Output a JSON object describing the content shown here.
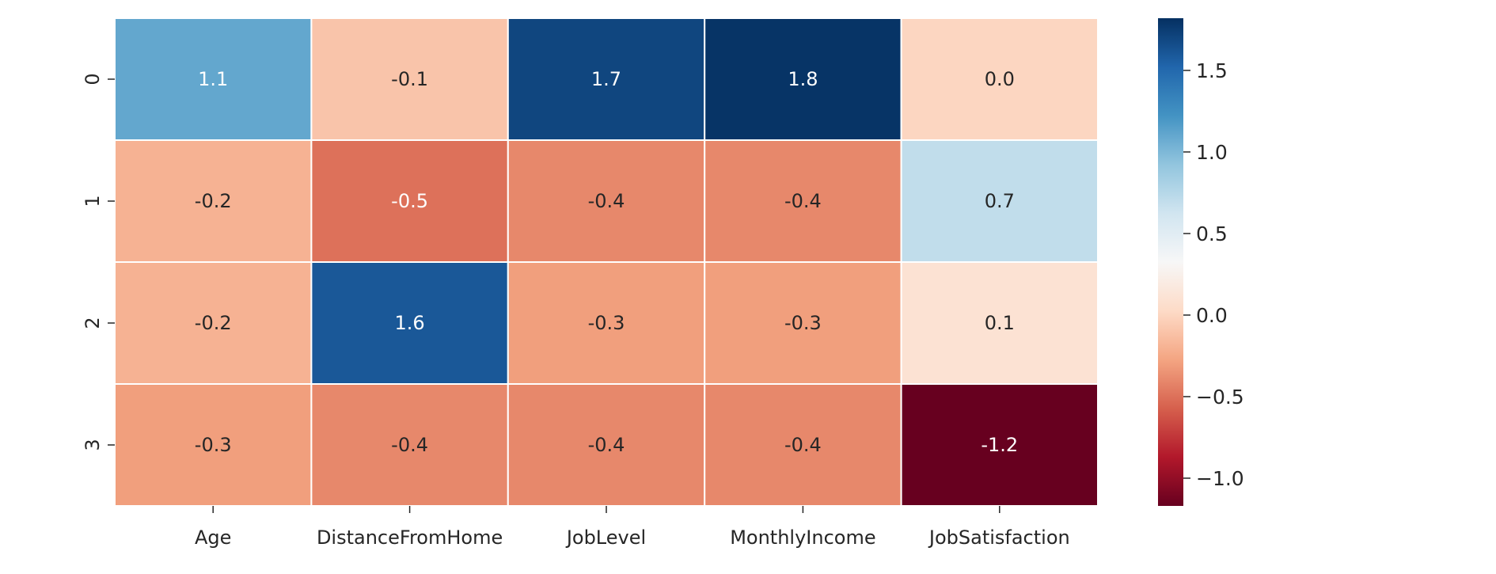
{
  "chart_data": {
    "type": "heatmap",
    "title": "",
    "xlabel": "",
    "ylabel": "",
    "columns": [
      "Age",
      "DistanceFromHome",
      "JobLevel",
      "MonthlyIncome",
      "JobSatisfaction"
    ],
    "rows": [
      "0",
      "1",
      "2",
      "3"
    ],
    "values": [
      [
        1.1,
        -0.1,
        1.7,
        1.8,
        0.0
      ],
      [
        -0.2,
        -0.5,
        -0.4,
        -0.4,
        0.7
      ],
      [
        -0.2,
        1.6,
        -0.3,
        -0.3,
        0.1
      ],
      [
        -0.3,
        -0.4,
        -0.4,
        -0.4,
        -1.2
      ]
    ],
    "cell_labels": [
      [
        "1.1",
        "-0.1",
        "1.7",
        "1.8",
        "0.0"
      ],
      [
        "-0.2",
        "-0.5",
        "-0.4",
        "-0.4",
        "0.7"
      ],
      [
        "-0.2",
        "1.6",
        "-0.3",
        "-0.3",
        "0.1"
      ],
      [
        "-0.3",
        "-0.4",
        "-0.4",
        "-0.4",
        "-1.2"
      ]
    ],
    "colorscale": "RdBu",
    "vmin": -1.17,
    "vmax": 1.82,
    "colorbar": {
      "ticks": [
        1.5,
        1.0,
        0.5,
        0.0,
        -0.5,
        -1.0
      ],
      "tick_labels": [
        "1.5",
        "1.0",
        "0.5",
        "0.0",
        "−0.5",
        "−1.0"
      ]
    },
    "grid": false,
    "legend": "colorbar-right"
  }
}
